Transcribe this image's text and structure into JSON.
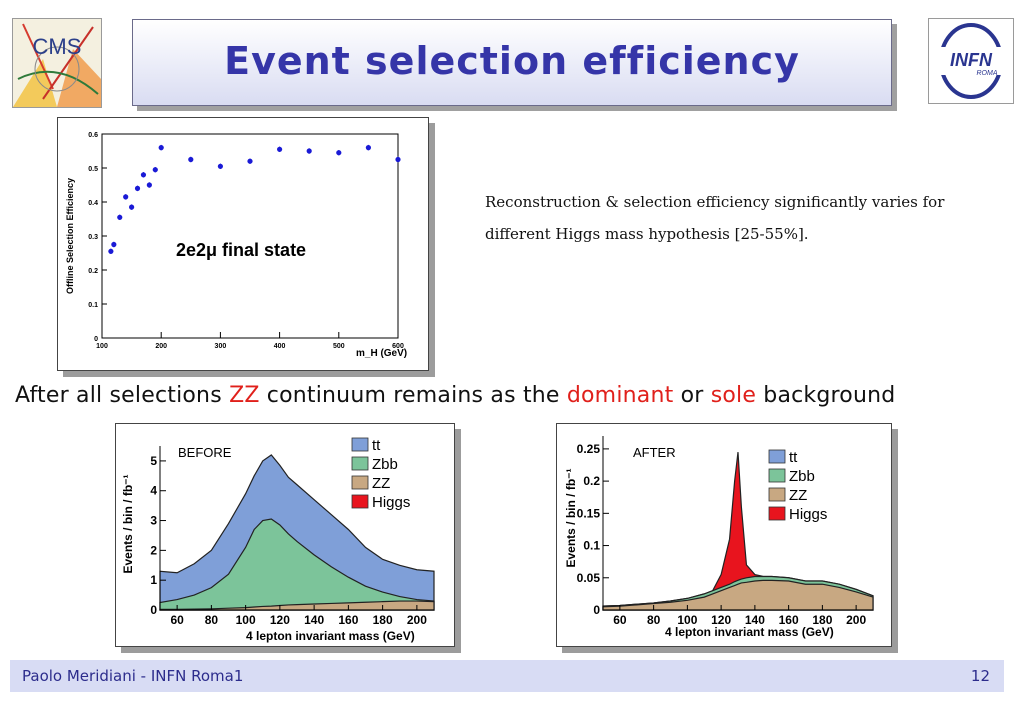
{
  "header": {
    "title": "Event selection efficiency",
    "left_logo_text": "CMS",
    "right_logo_text": "INFN",
    "right_logo_subtext": "ROMA"
  },
  "efficiency_plot": {
    "label": "2e2μ final state"
  },
  "description": {
    "line1": "Reconstruction & selection efficiency significantly varies for",
    "line2": "different Higgs mass hypothesis [25-55%]."
  },
  "statement": {
    "part1": "After all selections ",
    "highlight1": "ZZ",
    "part2": " continuum remains as the ",
    "highlight2": "dominant",
    "part3": " or ",
    "highlight3": "sole",
    "part4": " background"
  },
  "before_plot": {
    "tag": "BEFORE"
  },
  "after_plot": {
    "tag": "AFTER"
  },
  "footer": {
    "author": "Paolo Meridiani  - INFN Roma1",
    "page": "12"
  },
  "colors": {
    "title": "#3535a8",
    "highlight": "#e0201b",
    "tt": "#7f9fd8",
    "zbb": "#7cc49a",
    "zz": "#c8a882",
    "higgs": "#e8141e",
    "points": "#1a1ad6"
  },
  "chart_data": [
    {
      "type": "scatter",
      "title": "",
      "xlabel": "m_H (GeV)",
      "ylabel": "Offline Selection Efficiency",
      "xlim": [
        100,
        600
      ],
      "ylim": [
        0,
        0.6
      ],
      "xticks": [
        100,
        200,
        300,
        400,
        500,
        600
      ],
      "yticks": [
        0,
        0.1,
        0.2,
        0.3,
        0.4,
        0.5,
        0.6
      ],
      "x": [
        115,
        120,
        130,
        140,
        150,
        160,
        170,
        180,
        190,
        200,
        250,
        300,
        350,
        400,
        450,
        500,
        550,
        600
      ],
      "y": [
        0.255,
        0.275,
        0.355,
        0.415,
        0.385,
        0.44,
        0.48,
        0.45,
        0.495,
        0.56,
        0.525,
        0.505,
        0.52,
        0.555,
        0.55,
        0.545,
        0.56,
        0.525
      ],
      "yerr": [
        0.008,
        0.008,
        0.008,
        0.008,
        0.008,
        0.008,
        0.008,
        0.008,
        0.008,
        0.008,
        0.008,
        0.008,
        0.008,
        0.008,
        0.008,
        0.008,
        0.008,
        0.008
      ]
    },
    {
      "type": "area",
      "xlabel": "4 lepton invariant mass (GeV)",
      "ylabel": "Events / bin / fb⁻¹",
      "xlim": [
        50,
        210
      ],
      "ylim": [
        0,
        5.5
      ],
      "xticks": [
        60,
        80,
        100,
        120,
        140,
        160,
        180,
        200
      ],
      "yticks": [
        0,
        1,
        2,
        3,
        4,
        5
      ],
      "legend": [
        "tt",
        "Zbb",
        "ZZ",
        "Higgs"
      ],
      "x": [
        50,
        60,
        70,
        80,
        90,
        100,
        105,
        110,
        115,
        120,
        125,
        130,
        140,
        150,
        160,
        170,
        180,
        190,
        200,
        210
      ],
      "series": [
        {
          "name": "ZZ",
          "values": [
            0.02,
            0.02,
            0.03,
            0.04,
            0.06,
            0.08,
            0.1,
            0.12,
            0.13,
            0.15,
            0.17,
            0.18,
            0.2,
            0.22,
            0.24,
            0.26,
            0.28,
            0.3,
            0.3,
            0.28
          ]
        },
        {
          "name": "Zbb",
          "values": [
            0.25,
            0.35,
            0.5,
            0.75,
            1.2,
            2.1,
            2.7,
            3.0,
            3.05,
            2.85,
            2.55,
            2.3,
            1.85,
            1.45,
            1.1,
            0.8,
            0.6,
            0.45,
            0.35,
            0.3
          ]
        },
        {
          "name": "tt",
          "values": [
            1.3,
            1.25,
            1.55,
            2.0,
            2.9,
            3.9,
            4.5,
            5.0,
            5.2,
            4.85,
            4.45,
            4.2,
            3.7,
            3.2,
            2.7,
            2.1,
            1.7,
            1.5,
            1.35,
            1.3
          ]
        }
      ]
    },
    {
      "type": "area",
      "xlabel": "4 lepton invariant mass (GeV)",
      "ylabel": "Events / bin / fb⁻¹",
      "xlim": [
        50,
        210
      ],
      "ylim": [
        0,
        0.27
      ],
      "xticks": [
        60,
        80,
        100,
        120,
        140,
        160,
        180,
        200
      ],
      "yticks": [
        0,
        0.05,
        0.1,
        0.15,
        0.2,
        0.25
      ],
      "legend": [
        "tt",
        "Zbb",
        "ZZ",
        "Higgs"
      ],
      "x": [
        50,
        60,
        70,
        80,
        90,
        100,
        110,
        115,
        120,
        125,
        128,
        130,
        132,
        135,
        140,
        145,
        150,
        160,
        170,
        180,
        190,
        200,
        210
      ],
      "series": [
        {
          "name": "ZZ",
          "values": [
            0.005,
            0.006,
            0.008,
            0.01,
            0.012,
            0.015,
            0.02,
            0.025,
            0.03,
            0.035,
            0.038,
            0.04,
            0.042,
            0.043,
            0.045,
            0.046,
            0.046,
            0.045,
            0.04,
            0.04,
            0.035,
            0.028,
            0.02
          ]
        },
        {
          "name": "Zbb",
          "values": [
            0.006,
            0.007,
            0.009,
            0.011,
            0.014,
            0.018,
            0.025,
            0.03,
            0.035,
            0.04,
            0.044,
            0.046,
            0.048,
            0.05,
            0.052,
            0.052,
            0.052,
            0.05,
            0.045,
            0.045,
            0.04,
            0.032,
            0.022
          ]
        },
        {
          "name": "Higgs",
          "values": [
            0.006,
            0.007,
            0.009,
            0.011,
            0.014,
            0.018,
            0.025,
            0.03,
            0.055,
            0.11,
            0.2,
            0.245,
            0.16,
            0.07,
            0.055,
            0.052,
            0.052,
            0.05,
            0.045,
            0.045,
            0.04,
            0.032,
            0.022
          ]
        }
      ]
    }
  ]
}
